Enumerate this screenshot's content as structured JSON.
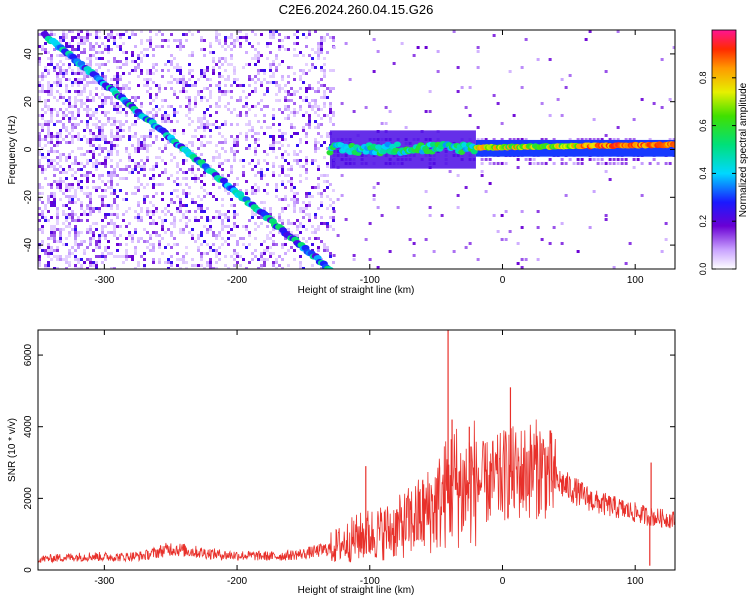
{
  "figure_title": "C2E6.2024.260.04.15.G26",
  "chart_data": [
    {
      "type": "heatmap",
      "xlabel": "Height of straight line (km)",
      "ylabel": "Frequency (Hz)",
      "xlim": [
        -350,
        130
      ],
      "ylim": [
        -50,
        50
      ],
      "xticks": [
        -300,
        -200,
        -100,
        0,
        100
      ],
      "yticks": [
        -40,
        -20,
        0,
        20,
        40
      ],
      "xtick_labels": [
        "-300",
        "-200",
        "-100",
        "0",
        "100"
      ],
      "ytick_labels": [
        "-40",
        "-20",
        "0",
        "20",
        "40"
      ],
      "colorbar": {
        "label": "Normalized spectral amplitude",
        "range": [
          0,
          1
        ],
        "ticks": [
          0.0,
          0.2,
          0.4,
          0.6,
          0.8
        ],
        "tick_labels": [
          "0.0",
          "0.2",
          "0.4",
          "0.6",
          "0.8"
        ]
      },
      "features": {
        "diagonal_track": {
          "x": [
            -345,
            -130
          ],
          "y": [
            48,
            -50
          ],
          "amplitude": 0.3
        },
        "horizontal_track": {
          "x": [
            -130,
            130
          ],
          "y": [
            0,
            2
          ],
          "amplitude": 0.9
        }
      },
      "grid": false
    },
    {
      "type": "line",
      "xlabel": "Height of straight line (km)",
      "ylabel": "SNR (10 * v/v)",
      "xlim": [
        -350,
        130
      ],
      "ylim": [
        0,
        6700
      ],
      "xticks": [
        -300,
        -200,
        -100,
        0,
        100
      ],
      "yticks": [
        0,
        2000,
        4000,
        6000
      ],
      "xtick_labels": [
        "-300",
        "-200",
        "-100",
        "0",
        "100"
      ],
      "ytick_labels": [
        "0",
        "2000",
        "4000",
        "6000"
      ],
      "color": "#e8302a",
      "x": [
        -350,
        -330,
        -310,
        -290,
        -270,
        -250,
        -230,
        -210,
        -190,
        -170,
        -150,
        -130,
        -120,
        -110,
        -100,
        -90,
        -80,
        -70,
        -60,
        -50,
        -45,
        -40,
        -35,
        -30,
        -25,
        -20,
        -15,
        -10,
        -5,
        0,
        5,
        10,
        20,
        30,
        40,
        50,
        60,
        70,
        80,
        90,
        100,
        110,
        120,
        130
      ],
      "y": [
        300,
        350,
        380,
        360,
        400,
        600,
        500,
        420,
        400,
        380,
        450,
        600,
        750,
        900,
        1000,
        1050,
        1150,
        1350,
        1550,
        1800,
        2000,
        2300,
        2400,
        2200,
        2400,
        2500,
        2400,
        2450,
        2500,
        2600,
        2750,
        2650,
        2800,
        2850,
        2500,
        2300,
        2100,
        1900,
        1800,
        1700,
        1600,
        1500,
        1450,
        1400
      ],
      "spikes": [
        {
          "x": -103,
          "y": 2900
        },
        {
          "x": -41,
          "y": 6700
        },
        {
          "x": -38,
          "y": 4200
        },
        {
          "x": -25,
          "y": 4000
        },
        {
          "x": 6,
          "y": 5100
        },
        {
          "x": 112,
          "y": 3000
        },
        {
          "x": 111,
          "y": 120
        }
      ],
      "grid": false
    }
  ]
}
